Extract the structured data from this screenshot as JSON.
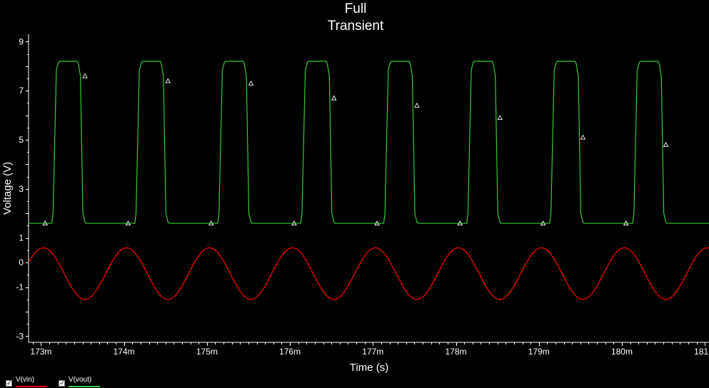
{
  "chart_data": {
    "type": "line",
    "title": "Full",
    "subtitle": "Transient",
    "xlabel": "Time (s)",
    "ylabel": "Voltage (V)",
    "xlim": [
      0.17285,
      0.18105
    ],
    "ylim": [
      -3.25,
      9.3
    ],
    "x_ticks": [
      {
        "value": 0.173,
        "label": "173m"
      },
      {
        "value": 0.174,
        "label": "174m"
      },
      {
        "value": 0.175,
        "label": "175m"
      },
      {
        "value": 0.176,
        "label": "176m"
      },
      {
        "value": 0.177,
        "label": "177m"
      },
      {
        "value": 0.178,
        "label": "178m"
      },
      {
        "value": 0.179,
        "label": "179m"
      },
      {
        "value": 0.18,
        "label": "180m"
      },
      {
        "value": 0.181,
        "label": "181m"
      }
    ],
    "y_ticks": [
      {
        "value": 9,
        "label": "9"
      },
      {
        "value": 7,
        "label": "7"
      },
      {
        "value": 5,
        "label": "5"
      },
      {
        "value": 3,
        "label": "3"
      },
      {
        "value": 1,
        "label": "1"
      },
      {
        "value": 0,
        "label": "0"
      },
      {
        "value": -1,
        "label": "-1"
      },
      {
        "value": -3,
        "label": "-3"
      }
    ],
    "grid": false,
    "legend_position": "bottom-left",
    "series": [
      {
        "name": "V(vin)",
        "color": "#ff0000",
        "shape": "sine",
        "period": 0.001,
        "offset": -0.45,
        "amplitude": 1.05,
        "peak_times": [
          0.17403,
          0.17503,
          0.17603,
          0.17703,
          0.17803,
          0.17903,
          0.18003,
          0.18103
        ]
      },
      {
        "name": "V(vout)",
        "color": "#33cc33",
        "shape": "square",
        "period": 0.001,
        "high": 8.2,
        "low": 1.6,
        "rise_starts": [
          0.17313,
          0.17413,
          0.17513,
          0.17613,
          0.17713,
          0.17813,
          0.17913,
          0.18013
        ],
        "fall_starts": [
          0.17345,
          0.17445,
          0.17545,
          0.17645,
          0.17745,
          0.17845,
          0.17945,
          0.18045
        ],
        "markers": [
          {
            "x": 0.17305,
            "y": 1.6
          },
          {
            "x": 0.17353,
            "y": 7.6
          },
          {
            "x": 0.17405,
            "y": 1.6
          },
          {
            "x": 0.17453,
            "y": 7.4
          },
          {
            "x": 0.17505,
            "y": 1.6
          },
          {
            "x": 0.17553,
            "y": 7.3
          },
          {
            "x": 0.17605,
            "y": 1.6
          },
          {
            "x": 0.17653,
            "y": 6.7
          },
          {
            "x": 0.17705,
            "y": 1.6
          },
          {
            "x": 0.17753,
            "y": 6.4
          },
          {
            "x": 0.17805,
            "y": 1.6
          },
          {
            "x": 0.17853,
            "y": 5.9
          },
          {
            "x": 0.17905,
            "y": 1.6
          },
          {
            "x": 0.17953,
            "y": 5.1
          },
          {
            "x": 0.18005,
            "y": 1.6
          },
          {
            "x": 0.18053,
            "y": 4.8
          }
        ]
      }
    ]
  }
}
